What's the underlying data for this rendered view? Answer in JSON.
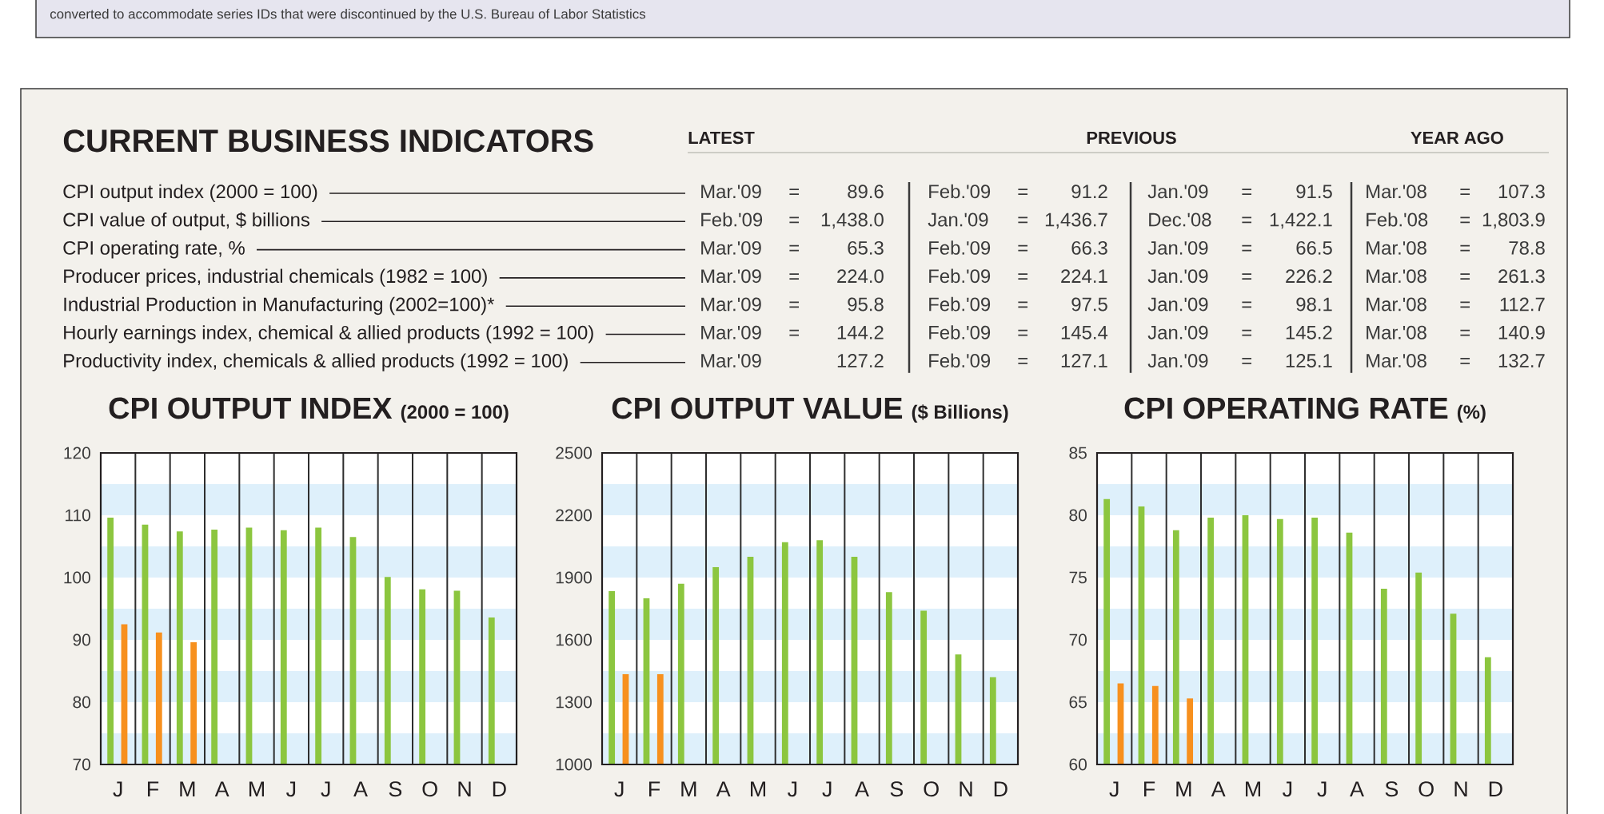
{
  "chart_data": [
    {
      "type": "other",
      "title": "CURRENT BUSINESS INDICATORS",
      "annotations": [
        "converted to accommodate series IDs that were discontinued by the U.S. Bureau of Labor Statistics",
        "LATEST",
        "PREVIOUS",
        "YEAR AGO",
        "CPI output index (2000 = 100)",
        "CPI value of output, $ billions",
        "CPI operating rate, %",
        "Producer prices, industrial chemicals (1982 = 100)",
        "Industrial Production in Manufacturing (2002=100)*",
        "Hourly earnings index, chemical & allied products (1992 = 100)",
        "Productivity index, chemicals & allied products (1992 = 100)",
        "Mar.'09 =",
        "89.6",
        "Feb.'09 =",
        "91.2",
        "Jan.'09 =",
        "91.5",
        "Mar.'08 =",
        "107.3",
        "Feb.'09 =",
        "1,438.0",
        "Jan.'09 =",
        "1,436.7",
        "Dec.'08 =",
        "1,422.1",
        "Feb.'08 =",
        "1,803.9",
        "Mar.'09 =",
        "65.3",
        "Feb.'09 =",
        "66.3",
        "Jan.'09 =",
        "66.5",
        "Mar.'08 =",
        "78.8",
        "Mar.'09 =",
        "224.0",
        "Feb.'09 =",
        "224.1",
        "Jan.'09 =",
        "226.2",
        "Mar.'08 =",
        "261.3",
        "Mar.'09 =",
        "95.8",
        "Feb.'09 =",
        "97.5",
        "Jan.'09 =",
        "98.1",
        "Mar.'08 =",
        "112.7",
        "Mar.'09 =",
        "144.2",
        "Feb.'09 =",
        "145.4",
        "Jan.'09 =",
        "145.2",
        "Mar.'08 =",
        "140.9",
        "Mar.'09",
        "127.2",
        "Feb.'09 =",
        "127.1",
        "Jan.'09 =",
        "125.1",
        "Mar.'08 =",
        "132.7"
      ]
    },
    {
      "type": "bar",
      "title": "CPI OUTPUT INDEX",
      "subtitle": "(2000 = 100)",
      "categories": [
        "J",
        "F",
        "M",
        "A",
        "M",
        "J",
        "J",
        "A",
        "S",
        "O",
        "N",
        "D"
      ],
      "series": [
        {
          "color": "#8cc63f",
          "values": [
            109.6,
            108.5,
            107.4,
            107.7,
            108.0,
            107.6,
            108.0,
            106.5,
            100.1,
            98.1,
            97.9,
            93.6
          ]
        },
        {
          "color": "#f7901e",
          "values": [
            92.5,
            91.2,
            89.6,
            null,
            null,
            null,
            null,
            null,
            null,
            null,
            null,
            null
          ]
        }
      ],
      "ylim": [
        70,
        120
      ],
      "yticks": [
        70,
        80,
        90,
        100,
        110,
        120
      ],
      "grid": "x",
      "bands": [
        {
          "axis": "y",
          "from": 110,
          "to": 115,
          "color": "#def0fb"
        },
        {
          "axis": "y",
          "from": 100,
          "to": 105,
          "color": "#def0fb"
        },
        {
          "axis": "y",
          "from": 90,
          "to": 95,
          "color": "#def0fb"
        },
        {
          "axis": "y",
          "from": 80,
          "to": 85,
          "color": "#def0fb"
        },
        {
          "axis": "y",
          "from": 70,
          "to": 75,
          "color": "#def0fb"
        }
      ]
    },
    {
      "type": "bar",
      "title": "CPI OUTPUT VALUE",
      "subtitle": "($ Billions)",
      "categories": [
        "J",
        "F",
        "M",
        "A",
        "M",
        "J",
        "J",
        "A",
        "S",
        "O",
        "N",
        "D"
      ],
      "series": [
        {
          "color": "#8cc63f",
          "values": [
            1835,
            1800,
            1870,
            1950,
            2000,
            2070,
            2080,
            2000,
            1830,
            1740,
            1530,
            1420
          ]
        },
        {
          "color": "#f7901e",
          "values": [
            1435,
            1435,
            null,
            null,
            null,
            null,
            null,
            null,
            null,
            null,
            null,
            null
          ]
        }
      ],
      "ylim": [
        1000,
        2500
      ],
      "yticks": [
        1000,
        1300,
        1600,
        1900,
        2200,
        2500
      ],
      "grid": "x",
      "bands": [
        {
          "axis": "y",
          "from": 2200,
          "to": 2350,
          "color": "#def0fb"
        },
        {
          "axis": "y",
          "from": 1900,
          "to": 2050,
          "color": "#def0fb"
        },
        {
          "axis": "y",
          "from": 1600,
          "to": 1750,
          "color": "#def0fb"
        },
        {
          "axis": "y",
          "from": 1300,
          "to": 1450,
          "color": "#def0fb"
        },
        {
          "axis": "y",
          "from": 1000,
          "to": 1150,
          "color": "#def0fb"
        }
      ]
    },
    {
      "type": "bar",
      "title": "CPI OPERATING RATE",
      "subtitle": "(%)",
      "categories": [
        "J",
        "F",
        "M",
        "A",
        "M",
        "J",
        "J",
        "A",
        "S",
        "O",
        "N",
        "D"
      ],
      "series": [
        {
          "color": "#8cc63f",
          "values": [
            81.3,
            80.7,
            78.8,
            79.8,
            80.0,
            79.7,
            79.8,
            78.6,
            74.1,
            75.4,
            72.1,
            68.6
          ]
        },
        {
          "color": "#f7901e",
          "values": [
            66.5,
            66.3,
            65.3,
            null,
            null,
            null,
            null,
            null,
            null,
            null,
            null,
            null
          ]
        }
      ],
      "ylim": [
        60,
        85
      ],
      "yticks": [
        60,
        65,
        70,
        75,
        80,
        85
      ],
      "grid": "x",
      "bands": [
        {
          "axis": "y",
          "from": 80,
          "to": 82.5,
          "color": "#def0fb"
        },
        {
          "axis": "y",
          "from": 75,
          "to": 77.5,
          "color": "#def0fb"
        },
        {
          "axis": "y",
          "from": 70,
          "to": 72.5,
          "color": "#def0fb"
        },
        {
          "axis": "y",
          "from": 65,
          "to": 67.5,
          "color": "#def0fb"
        },
        {
          "axis": "y",
          "from": 60,
          "to": 62.5,
          "color": "#def0fb"
        }
      ]
    }
  ]
}
